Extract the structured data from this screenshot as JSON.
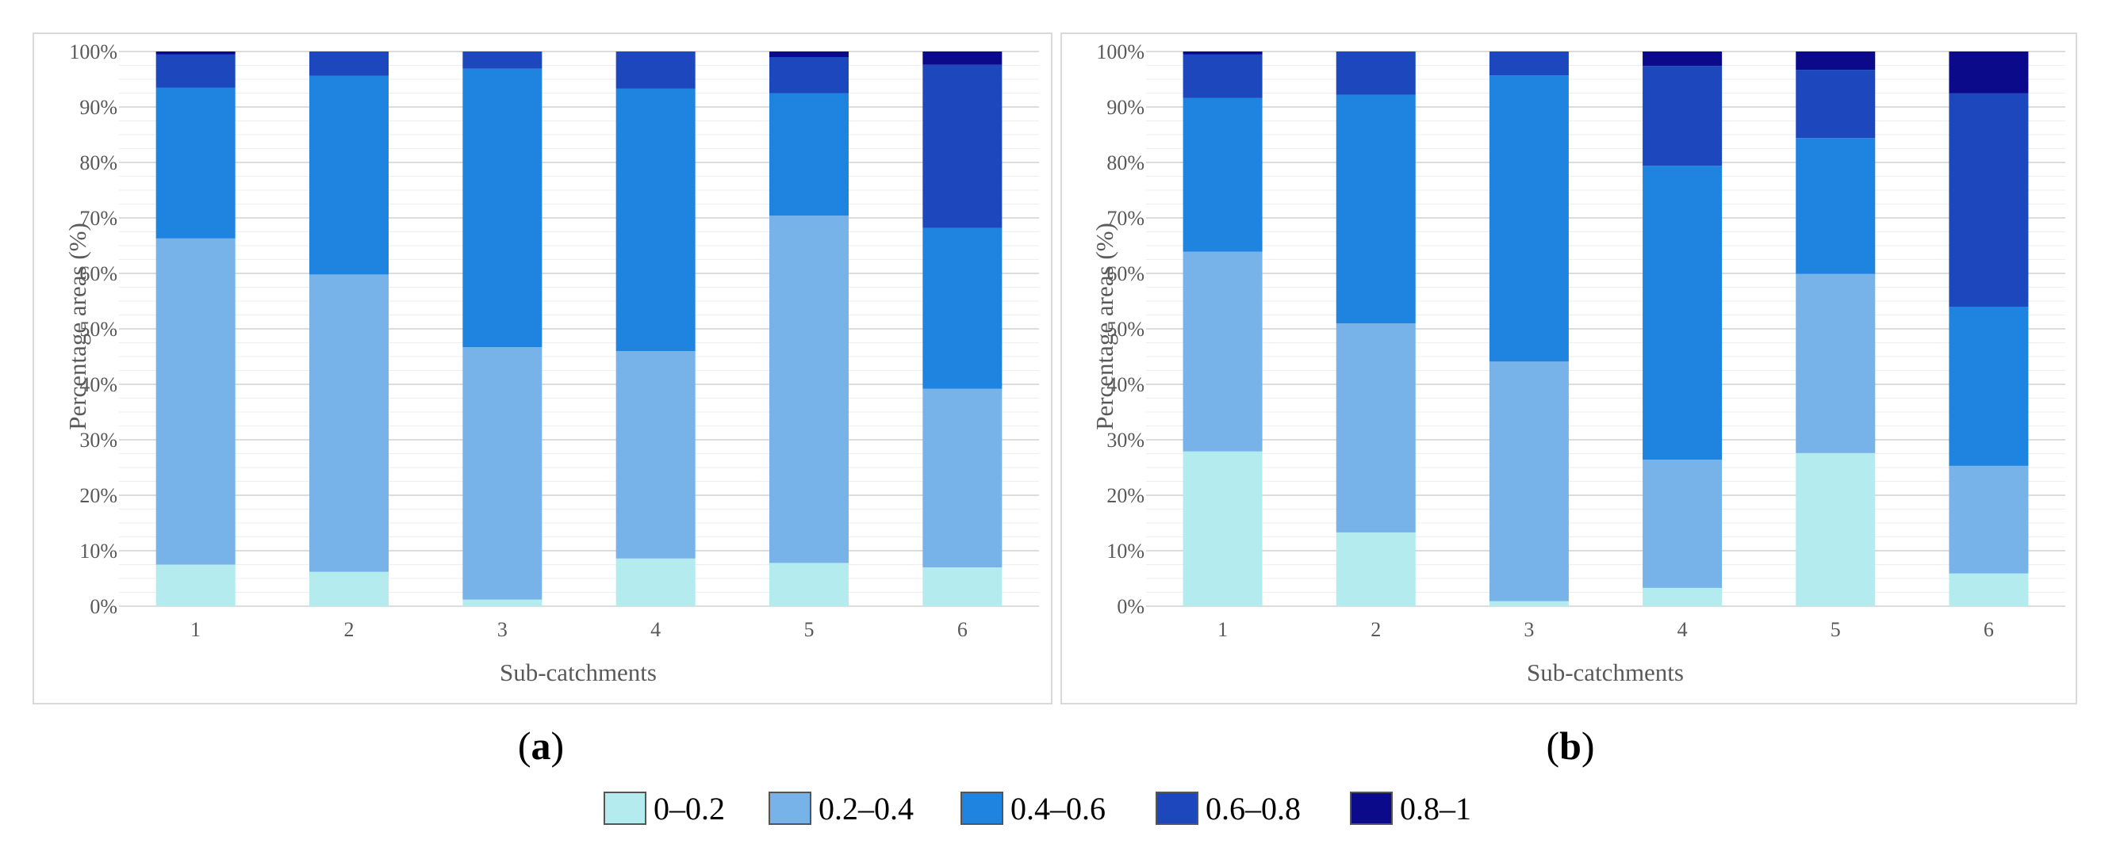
{
  "chart_data": [
    {
      "type": "bar",
      "stacked": true,
      "panel_label": "a",
      "xlabel": "Sub-catchments",
      "ylabel": "Percentage areas (%)",
      "ylim": [
        0,
        100
      ],
      "categories": [
        "1",
        "2",
        "3",
        "4",
        "5",
        "6"
      ],
      "y_ticks": [
        "0%",
        "10%",
        "20%",
        "30%",
        "40%",
        "50%",
        "60%",
        "70%",
        "80%",
        "90%",
        "100%"
      ],
      "series": [
        {
          "name": "0–0.2",
          "color": "#b4ebef",
          "values": [
            7.5,
            6.2,
            1.2,
            8.6,
            7.8,
            7.0
          ]
        },
        {
          "name": "0.2–0.4",
          "color": "#77b2e8",
          "values": [
            58.8,
            53.6,
            45.5,
            37.4,
            62.6,
            32.2
          ]
        },
        {
          "name": "0.4–0.6",
          "color": "#1f84e0",
          "values": [
            27.2,
            35.8,
            50.2,
            47.3,
            22.1,
            29.0
          ]
        },
        {
          "name": "0.6–0.8",
          "color": "#1c47bd",
          "values": [
            6.0,
            4.4,
            3.1,
            6.7,
            6.5,
            29.4
          ]
        },
        {
          "name": "0.8–1",
          "color": "#0a0a8a",
          "values": [
            0.5,
            0.0,
            0.0,
            0.0,
            1.0,
            2.4
          ]
        }
      ]
    },
    {
      "type": "bar",
      "stacked": true,
      "panel_label": "b",
      "xlabel": "Sub-catchments",
      "ylabel": "Percentage areas (%)",
      "ylim": [
        0,
        100
      ],
      "categories": [
        "1",
        "2",
        "3",
        "4",
        "5",
        "6"
      ],
      "y_ticks": [
        "0%",
        "10%",
        "20%",
        "30%",
        "40%",
        "50%",
        "60%",
        "70%",
        "80%",
        "90%",
        "100%"
      ],
      "series": [
        {
          "name": "0–0.2",
          "color": "#b4ebef",
          "values": [
            27.9,
            13.3,
            0.9,
            3.3,
            27.6,
            5.9
          ]
        },
        {
          "name": "0.2–0.4",
          "color": "#77b2e8",
          "values": [
            36.0,
            37.7,
            43.2,
            23.1,
            32.3,
            19.4
          ]
        },
        {
          "name": "0.4–0.6",
          "color": "#1f84e0",
          "values": [
            27.7,
            41.2,
            51.6,
            53.0,
            24.5,
            28.7
          ]
        },
        {
          "name": "0.6–0.8",
          "color": "#1c47bd",
          "values": [
            7.9,
            7.8,
            4.3,
            18.0,
            12.3,
            38.5
          ]
        },
        {
          "name": "0.8–1",
          "color": "#0a0a8a",
          "values": [
            0.5,
            0.0,
            0.0,
            2.6,
            3.3,
            7.5
          ]
        }
      ]
    }
  ],
  "legend": [
    {
      "label": "0–0.2",
      "color": "#b4ebef"
    },
    {
      "label": "0.2–0.4",
      "color": "#77b2e8"
    },
    {
      "label": "0.4–0.6",
      "color": "#1f84e0"
    },
    {
      "label": "0.6–0.8",
      "color": "#1c47bd"
    },
    {
      "label": "0.8–1",
      "color": "#0a0a8a"
    }
  ],
  "captions": {
    "a": "a",
    "b": "b"
  },
  "styles": {
    "grid_major": "#d0d0d0",
    "grid_minor": "#eeeeee",
    "frame": "#d9d9d9",
    "text": "#595959"
  }
}
